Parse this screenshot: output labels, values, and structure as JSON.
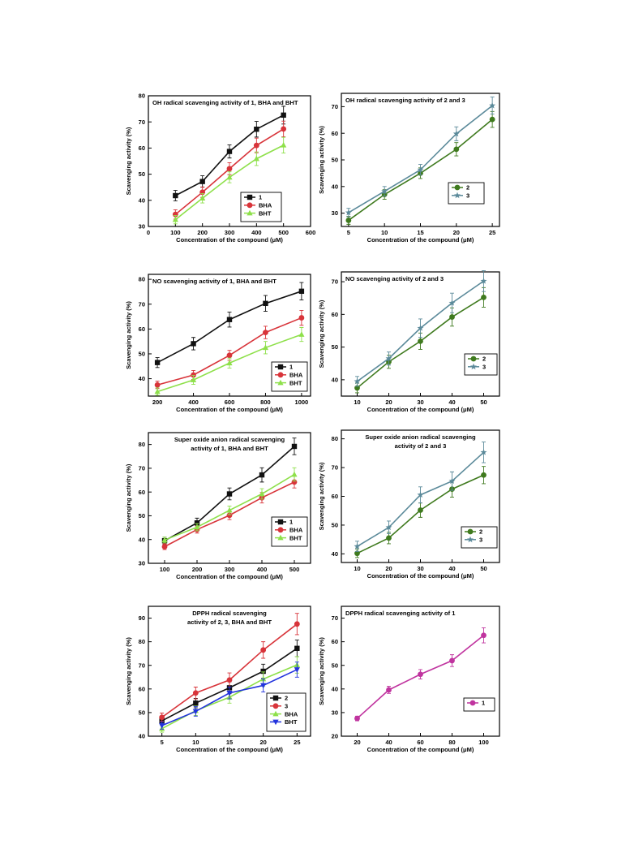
{
  "chart_data": [
    {
      "type": "line",
      "title_lines": [
        "OH radical scavenging activity of 1, BHA and BHT"
      ],
      "xlabel": "Concentration of the compound (μM)",
      "ylabel": "Scavenging activity (%)",
      "xlim": [
        0,
        600
      ],
      "ylim": [
        30,
        80
      ],
      "xticks": [
        0,
        100,
        200,
        300,
        400,
        500,
        600
      ],
      "yticks": [
        30,
        40,
        50,
        60,
        70,
        80
      ],
      "legend_position": "lower-right",
      "x": [
        100,
        200,
        300,
        400,
        500
      ],
      "series": [
        {
          "name": "1",
          "color": "#111111",
          "marker": "square",
          "values": [
            41.8,
            47.2,
            58.7,
            67.2,
            72.6
          ],
          "err": [
            2.0,
            2.2,
            2.5,
            3.0,
            3.4
          ]
        },
        {
          "name": "BHA",
          "color": "#d8343a",
          "marker": "circle",
          "values": [
            34.6,
            43.1,
            52.1,
            61.0,
            67.3
          ],
          "err": [
            1.8,
            2.0,
            2.3,
            2.8,
            3.0
          ]
        },
        {
          "name": "BHT",
          "color": "#8ee04a",
          "marker": "triangle-up",
          "values": [
            32.6,
            40.8,
            48.8,
            55.9,
            61.1
          ],
          "err": [
            1.6,
            1.8,
            2.1,
            2.6,
            3.0
          ]
        }
      ]
    },
    {
      "type": "line",
      "title_lines": [
        "OH radical scavenging activity of 2 and 3"
      ],
      "xlabel": "Concentration of the compound (μM)",
      "ylabel": "Scavenging activity (%)",
      "xlim": [
        4,
        26
      ],
      "ylim": [
        25,
        75
      ],
      "xticks": [
        5,
        10,
        15,
        20,
        25
      ],
      "yticks": [
        30,
        40,
        50,
        60,
        70
      ],
      "legend_position": "center-right",
      "x": [
        5,
        10,
        15,
        20,
        25
      ],
      "series": [
        {
          "name": "2",
          "color": "#3f7a1e",
          "marker": "circle",
          "values": [
            27.3,
            37.0,
            45.0,
            54.0,
            65.2
          ],
          "err": [
            1.5,
            1.8,
            2.0,
            2.5,
            3.0
          ]
        },
        {
          "name": "3",
          "color": "#5b8a9a",
          "marker": "star",
          "values": [
            30.2,
            38.2,
            46.3,
            59.8,
            70.4
          ],
          "err": [
            1.6,
            1.8,
            2.0,
            2.6,
            3.2
          ]
        }
      ]
    },
    {
      "type": "line",
      "title_lines": [
        "NO scavenging activity of 1, BHA and BHT"
      ],
      "xlabel": "Concentration of the compound (μM)",
      "ylabel": "Scavenging activity (%)",
      "xlim": [
        150,
        1050
      ],
      "ylim": [
        33,
        82
      ],
      "xticks": [
        200,
        400,
        600,
        800,
        1000
      ],
      "yticks": [
        40,
        50,
        60,
        70,
        80
      ],
      "legend_position": "lower-right",
      "x": [
        200,
        400,
        600,
        800,
        1000
      ],
      "series": [
        {
          "name": "1",
          "color": "#111111",
          "marker": "square",
          "values": [
            46.5,
            54.1,
            63.8,
            70.3,
            75.2
          ],
          "err": [
            2.0,
            2.5,
            3.0,
            3.2,
            3.5
          ]
        },
        {
          "name": "BHA",
          "color": "#d8343a",
          "marker": "circle",
          "values": [
            37.5,
            41.5,
            49.4,
            58.6,
            64.5
          ],
          "err": [
            1.5,
            1.8,
            2.0,
            2.5,
            3.0
          ]
        },
        {
          "name": "BHT",
          "color": "#8ee04a",
          "marker": "triangle-up",
          "values": [
            34.8,
            39.5,
            46.3,
            52.5,
            57.8
          ],
          "err": [
            1.5,
            1.8,
            2.0,
            2.5,
            2.8
          ]
        }
      ]
    },
    {
      "type": "line",
      "title_lines": [
        "NO scavenging activity of 2 and 3"
      ],
      "xlabel": "Concentration of the compound (μM)",
      "ylabel": "Scavenging activity (%)",
      "xlim": [
        5,
        55
      ],
      "ylim": [
        35,
        73
      ],
      "xticks": [
        10,
        20,
        30,
        40,
        50
      ],
      "yticks": [
        40,
        50,
        60,
        70
      ],
      "legend_position": "lower-right",
      "x": [
        10,
        20,
        30,
        40,
        50
      ],
      "series": [
        {
          "name": "2",
          "color": "#3f7a1e",
          "marker": "circle",
          "values": [
            37.5,
            45.5,
            51.8,
            59.2,
            65.2
          ],
          "err": [
            1.5,
            2.0,
            2.5,
            2.8,
            3.0
          ]
        },
        {
          "name": "3",
          "color": "#5b8a9a",
          "marker": "star",
          "values": [
            39.5,
            46.5,
            55.8,
            63.5,
            70.2
          ],
          "err": [
            1.5,
            2.0,
            2.8,
            3.0,
            3.2
          ]
        }
      ]
    },
    {
      "type": "line",
      "title_lines": [
        "Super oxide anion radical scavenging",
        "activity of 1, BHA and BHT"
      ],
      "xlabel": "Concentration of the compound (μM)",
      "ylabel": "Scavenging activity (%)",
      "xlim": [
        50,
        550
      ],
      "ylim": [
        30,
        85
      ],
      "xticks": [
        100,
        200,
        300,
        400,
        500
      ],
      "yticks": [
        30,
        40,
        50,
        60,
        70,
        80
      ],
      "legend_position": "lower-right",
      "x": [
        100,
        200,
        300,
        400,
        500
      ],
      "series": [
        {
          "name": "1",
          "color": "#111111",
          "marker": "square",
          "values": [
            39.5,
            47.0,
            59.2,
            67.2,
            79.2
          ],
          "err": [
            1.5,
            2.0,
            2.5,
            3.0,
            3.5
          ]
        },
        {
          "name": "BHA",
          "color": "#d8343a",
          "marker": "circle",
          "values": [
            37.0,
            44.2,
            50.2,
            57.6,
            64.2
          ],
          "err": [
            1.2,
            1.5,
            1.8,
            2.2,
            2.5
          ]
        },
        {
          "name": "BHT",
          "color": "#8ee04a",
          "marker": "triangle-up",
          "values": [
            39.8,
            45.2,
            52.3,
            59.2,
            67.4
          ],
          "err": [
            1.2,
            1.5,
            1.8,
            2.2,
            2.8
          ]
        }
      ]
    },
    {
      "type": "line",
      "title_lines": [
        "Super oxide anion radical scavenging",
        "activity of 2 and 3"
      ],
      "xlabel": "Concentration of the compound (μM)",
      "ylabel": "Scavenging activity (%)",
      "xlim": [
        5,
        55
      ],
      "ylim": [
        37,
        83
      ],
      "xticks": [
        10,
        20,
        30,
        40,
        50
      ],
      "yticks": [
        40,
        50,
        60,
        70,
        80
      ],
      "legend_position": "lower-right",
      "x": [
        10,
        20,
        30,
        40,
        50
      ],
      "series": [
        {
          "name": "2",
          "color": "#3f7a1e",
          "marker": "circle",
          "values": [
            40.2,
            45.5,
            55.2,
            62.5,
            67.4
          ],
          "err": [
            1.5,
            2.0,
            2.5,
            2.8,
            3.0
          ]
        },
        {
          "name": "3",
          "color": "#5b8a9a",
          "marker": "star",
          "values": [
            42.6,
            49.2,
            60.5,
            65.3,
            75.3
          ],
          "err": [
            1.8,
            2.2,
            2.8,
            3.2,
            3.6
          ]
        }
      ]
    },
    {
      "type": "line",
      "title_lines": [
        "DPPH radical scavenging",
        "activity of 2, 3, BHA and BHT"
      ],
      "xlabel": "Concentration of the compound (μM)",
      "ylabel": "Scavenging activity (%)",
      "xlim": [
        3,
        27
      ],
      "ylim": [
        40,
        95
      ],
      "xticks": [
        5,
        10,
        15,
        20,
        25
      ],
      "yticks": [
        40,
        50,
        60,
        70,
        80,
        90
      ],
      "legend_position": "lower-right",
      "x": [
        5,
        10,
        15,
        20,
        25
      ],
      "series": [
        {
          "name": "2",
          "color": "#111111",
          "marker": "square",
          "values": [
            46.5,
            54.0,
            60.5,
            67.5,
            77.2
          ],
          "err": [
            1.5,
            2.0,
            2.5,
            3.0,
            3.5
          ]
        },
        {
          "name": "3",
          "color": "#d8343a",
          "marker": "circle",
          "values": [
            48.0,
            58.3,
            63.8,
            76.5,
            87.5
          ],
          "err": [
            1.8,
            2.5,
            3.0,
            3.5,
            4.5
          ]
        },
        {
          "name": "BHA",
          "color": "#8ee04a",
          "marker": "triangle-up",
          "values": [
            43.2,
            50.8,
            56.5,
            64.2,
            70.2
          ],
          "err": [
            1.5,
            2.0,
            2.5,
            3.0,
            3.5
          ]
        },
        {
          "name": "BHT",
          "color": "#2233dd",
          "marker": "triangle-down",
          "values": [
            44.5,
            50.5,
            58.3,
            61.5,
            68.2
          ],
          "err": [
            1.5,
            2.0,
            2.5,
            2.8,
            3.2
          ]
        }
      ]
    },
    {
      "type": "line",
      "title_lines": [
        "DPPH radical scavenging activity of 1"
      ],
      "xlabel": "Concentration of the compound (μM)",
      "ylabel": "Scavenging activity (%)",
      "xlim": [
        10,
        110
      ],
      "ylim": [
        20,
        75
      ],
      "xticks": [
        20,
        40,
        60,
        80,
        100
      ],
      "yticks": [
        20,
        30,
        40,
        50,
        60,
        70
      ],
      "legend_position": "lower-right",
      "x": [
        20,
        40,
        60,
        80,
        100
      ],
      "series": [
        {
          "name": "1",
          "color": "#c0349f",
          "marker": "circle",
          "values": [
            27.5,
            39.6,
            46.2,
            52.0,
            62.7
          ],
          "err": [
            1.0,
            1.5,
            2.0,
            2.5,
            3.2
          ]
        }
      ]
    }
  ]
}
